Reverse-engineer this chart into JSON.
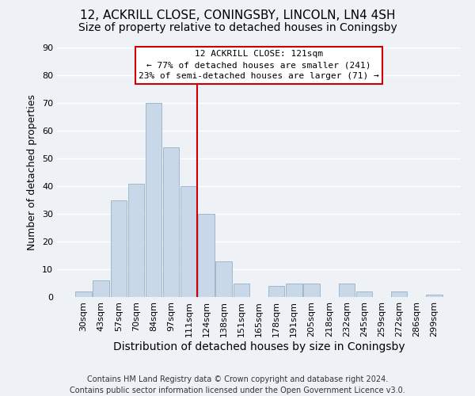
{
  "title": "12, ACKRILL CLOSE, CONINGSBY, LINCOLN, LN4 4SH",
  "subtitle": "Size of property relative to detached houses in Coningsby",
  "xlabel": "Distribution of detached houses by size in Coningsby",
  "ylabel": "Number of detached properties",
  "bar_labels": [
    "30sqm",
    "43sqm",
    "57sqm",
    "70sqm",
    "84sqm",
    "97sqm",
    "111sqm",
    "124sqm",
    "138sqm",
    "151sqm",
    "165sqm",
    "178sqm",
    "191sqm",
    "205sqm",
    "218sqm",
    "232sqm",
    "245sqm",
    "259sqm",
    "272sqm",
    "286sqm",
    "299sqm"
  ],
  "bar_values": [
    2,
    6,
    35,
    41,
    70,
    54,
    40,
    30,
    13,
    5,
    0,
    4,
    5,
    5,
    0,
    5,
    2,
    0,
    2,
    0,
    1
  ],
  "bar_color": "#c8d8e8",
  "bar_edge_color": "#a0b8cc",
  "vline_index": 7,
  "vline_color": "#cc0000",
  "ylim": [
    0,
    90
  ],
  "yticks": [
    0,
    10,
    20,
    30,
    40,
    50,
    60,
    70,
    80,
    90
  ],
  "annotation_title": "12 ACKRILL CLOSE: 121sqm",
  "annotation_line1": "← 77% of detached houses are smaller (241)",
  "annotation_line2": "23% of semi-detached houses are larger (71) →",
  "annotation_box_color": "#ffffff",
  "annotation_box_edge": "#cc0000",
  "footer_line1": "Contains HM Land Registry data © Crown copyright and database right 2024.",
  "footer_line2": "Contains public sector information licensed under the Open Government Licence v3.0.",
  "background_color": "#eef2f7",
  "plot_background_color": "#eef2f7",
  "grid_color": "#ffffff",
  "title_fontsize": 11,
  "subtitle_fontsize": 10,
  "xlabel_fontsize": 10,
  "ylabel_fontsize": 9,
  "tick_fontsize": 8,
  "footer_fontsize": 7
}
